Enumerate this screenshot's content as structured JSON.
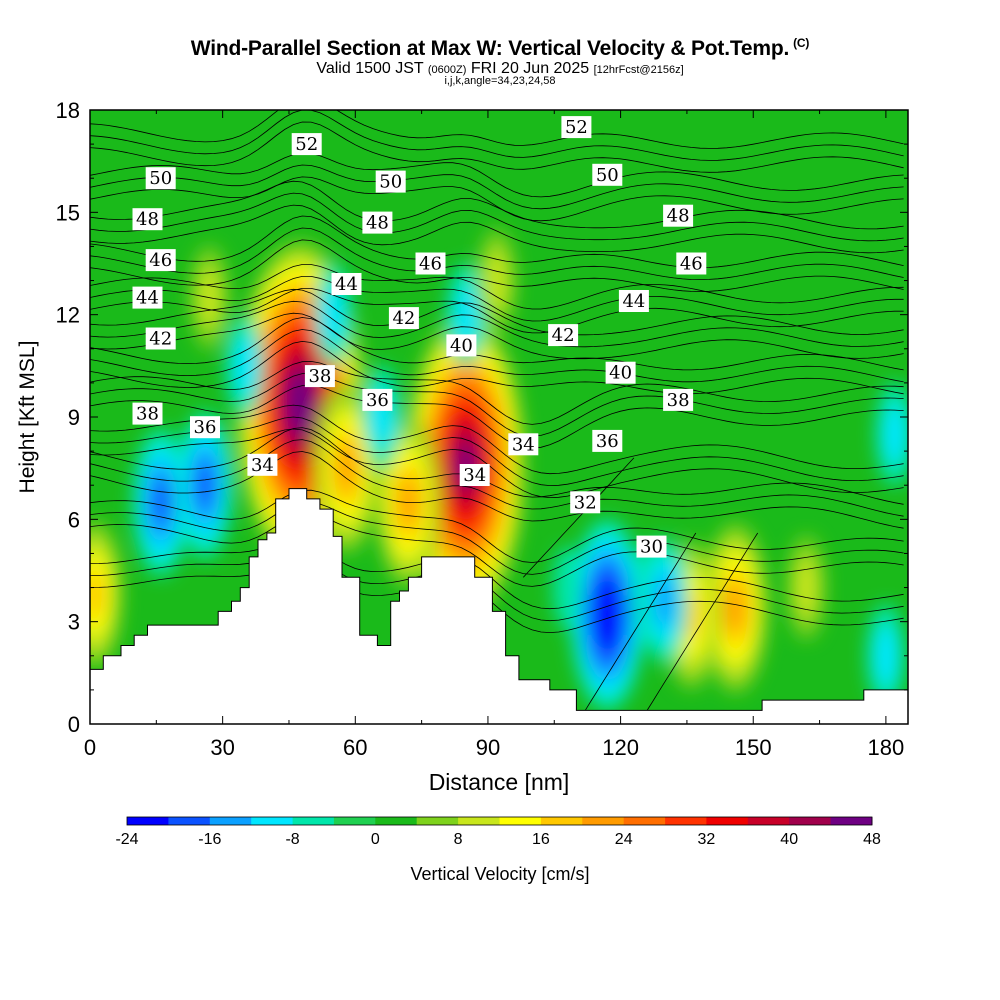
{
  "title": {
    "main": "Wind-Parallel Section at Max W: Vertical Velocity & Pot.Temp.",
    "copyright": "(C)",
    "valid_prefix": "Valid 1500 JST",
    "valid_utc": "(0600Z)",
    "valid_date": "FRI 20 Jun 2025",
    "forecast": "[12hrFcst@2156z]",
    "indices": "i,j,k,angle=34,23,24,58"
  },
  "colorbar": {
    "label": "Vertical Velocity [cm/s]",
    "tick_labels": [
      "-24",
      "-16",
      "-8",
      "0",
      "8",
      "16",
      "24",
      "32",
      "40",
      "48"
    ],
    "levels": [
      -24,
      -20,
      -16,
      -12,
      -8,
      -4,
      0,
      4,
      8,
      12,
      16,
      20,
      24,
      28,
      32,
      36,
      40,
      44,
      48
    ],
    "colors": [
      "#0000ff",
      "#0a52ff",
      "#0aa0ff",
      "#00e6ff",
      "#00e6aa",
      "#1fd050",
      "#1aba1a",
      "#7ed21c",
      "#c8e61c",
      "#ffff00",
      "#ffc800",
      "#ff9b00",
      "#ff6e00",
      "#ff3200",
      "#f00000",
      "#c80028",
      "#a0004b",
      "#6e0082"
    ]
  },
  "chart_data": {
    "type": "heatmap",
    "description_of_fields": "Filled: vertical velocity (cm/s); Contours: potential temperature labels",
    "xlabel": "Distance [nm]",
    "ylabel": "Height [Kft MSL]",
    "xlim": [
      0,
      185
    ],
    "ylim": [
      0,
      18
    ],
    "x_ticks": [
      0,
      30,
      60,
      90,
      120,
      150,
      180
    ],
    "y_ticks": [
      0,
      3,
      6,
      9,
      12,
      15,
      18
    ],
    "terrain": [
      [
        0,
        1.6
      ],
      [
        3,
        1.6
      ],
      [
        3,
        2.0
      ],
      [
        7,
        2.0
      ],
      [
        7,
        2.3
      ],
      [
        10,
        2.3
      ],
      [
        10,
        2.6
      ],
      [
        13,
        2.6
      ],
      [
        13,
        2.9
      ],
      [
        29,
        2.9
      ],
      [
        29,
        3.3
      ],
      [
        32,
        3.3
      ],
      [
        32,
        3.6
      ],
      [
        34,
        3.6
      ],
      [
        34,
        4.0
      ],
      [
        36,
        4.0
      ],
      [
        36,
        4.9
      ],
      [
        38,
        4.9
      ],
      [
        38,
        5.4
      ],
      [
        40,
        5.4
      ],
      [
        40,
        5.6
      ],
      [
        42,
        5.6
      ],
      [
        42,
        6.6
      ],
      [
        45,
        6.6
      ],
      [
        45,
        6.9
      ],
      [
        49,
        6.9
      ],
      [
        49,
        6.6
      ],
      [
        52,
        6.6
      ],
      [
        52,
        6.3
      ],
      [
        55,
        6.3
      ],
      [
        55,
        5.5
      ],
      [
        57,
        5.5
      ],
      [
        57,
        4.3
      ],
      [
        61,
        4.3
      ],
      [
        61,
        2.6
      ],
      [
        65,
        2.6
      ],
      [
        65,
        2.3
      ],
      [
        68,
        2.3
      ],
      [
        68,
        3.6
      ],
      [
        70,
        3.6
      ],
      [
        70,
        3.9
      ],
      [
        72,
        3.9
      ],
      [
        72,
        4.3
      ],
      [
        75,
        4.3
      ],
      [
        75,
        4.9
      ],
      [
        87,
        4.9
      ],
      [
        87,
        4.3
      ],
      [
        91,
        4.3
      ],
      [
        91,
        3.3
      ],
      [
        94,
        3.3
      ],
      [
        94,
        2.0
      ],
      [
        97,
        2.0
      ],
      [
        97,
        1.3
      ],
      [
        104,
        1.3
      ],
      [
        104,
        1.0
      ],
      [
        110,
        1.0
      ],
      [
        110,
        0.4
      ],
      [
        152,
        0.4
      ],
      [
        152,
        0.7
      ],
      [
        175,
        0.7
      ],
      [
        175,
        1.0
      ],
      [
        185,
        1.0
      ]
    ],
    "vertical_velocity_features": [
      {
        "x": 47.5,
        "y": 9.4,
        "peak": 48
      },
      {
        "x": 85,
        "y": 7.6,
        "peak": 44
      },
      {
        "x": 72,
        "y": 6.5,
        "peak": 20
      },
      {
        "x": 58,
        "y": 7.5,
        "peak": 20
      },
      {
        "x": 146,
        "y": 3.4,
        "peak": 20
      },
      {
        "x": 136,
        "y": 3.2,
        "peak": 16
      },
      {
        "x": 117,
        "y": 3.2,
        "peak": -24
      },
      {
        "x": 16,
        "y": 6.5,
        "peak": -16
      },
      {
        "x": 26,
        "y": 7.0,
        "peak": -16
      },
      {
        "x": 66,
        "y": 9.0,
        "peak": -8
      },
      {
        "x": 127,
        "y": 3.8,
        "peak": -10
      },
      {
        "x": 130,
        "y": 3.6,
        "peak": -12
      },
      {
        "x": 180,
        "y": 2.0,
        "peak": -8
      },
      {
        "x": 182,
        "y": 8.5,
        "peak": -8
      },
      {
        "x": 55,
        "y": 12.0,
        "peak": -8
      },
      {
        "x": 85,
        "y": 12.0,
        "peak": -8
      },
      {
        "x": 35,
        "y": 10.5,
        "peak": -8
      },
      {
        "x": 1,
        "y": 3.8,
        "peak": 16
      },
      {
        "x": 27,
        "y": 12.5,
        "peak": 8
      },
      {
        "x": 92,
        "y": 13.0,
        "peak": 8
      },
      {
        "x": 162,
        "y": 4.0,
        "peak": 8
      },
      {
        "x": 108,
        "y": 4.0,
        "peak": -4
      }
    ],
    "theta_labels": [
      {
        "text": "52",
        "x": 49,
        "y": 17.0
      },
      {
        "text": "52",
        "x": 110,
        "y": 17.5
      },
      {
        "text": "50",
        "x": 16,
        "y": 16.0
      },
      {
        "text": "50",
        "x": 68,
        "y": 15.9
      },
      {
        "text": "50",
        "x": 117,
        "y": 16.1
      },
      {
        "text": "48",
        "x": 13,
        "y": 14.8
      },
      {
        "text": "48",
        "x": 65,
        "y": 14.7
      },
      {
        "text": "48",
        "x": 133,
        "y": 14.9
      },
      {
        "text": "46",
        "x": 16,
        "y": 13.6
      },
      {
        "text": "46",
        "x": 77,
        "y": 13.5
      },
      {
        "text": "46",
        "x": 136,
        "y": 13.5
      },
      {
        "text": "44",
        "x": 13,
        "y": 12.5
      },
      {
        "text": "44",
        "x": 58,
        "y": 12.9
      },
      {
        "text": "44",
        "x": 123,
        "y": 12.4
      },
      {
        "text": "42",
        "x": 16,
        "y": 11.3
      },
      {
        "text": "42",
        "x": 71,
        "y": 11.9
      },
      {
        "text": "42",
        "x": 107,
        "y": 11.4
      },
      {
        "text": "40",
        "x": 84,
        "y": 11.1
      },
      {
        "text": "40",
        "x": 120,
        "y": 10.3
      },
      {
        "text": "38",
        "x": 13,
        "y": 9.1
      },
      {
        "text": "38",
        "x": 52,
        "y": 10.2
      },
      {
        "text": "38",
        "x": 133,
        "y": 9.5
      },
      {
        "text": "36",
        "x": 26,
        "y": 8.7
      },
      {
        "text": "36",
        "x": 65,
        "y": 9.5
      },
      {
        "text": "36",
        "x": 117,
        "y": 8.3
      },
      {
        "text": "34",
        "x": 39,
        "y": 7.6
      },
      {
        "text": "34",
        "x": 87,
        "y": 7.3
      },
      {
        "text": "34",
        "x": 98,
        "y": 8.2
      },
      {
        "text": "32",
        "x": 112,
        "y": 6.5
      },
      {
        "text": "30",
        "x": 127,
        "y": 5.2
      }
    ]
  }
}
